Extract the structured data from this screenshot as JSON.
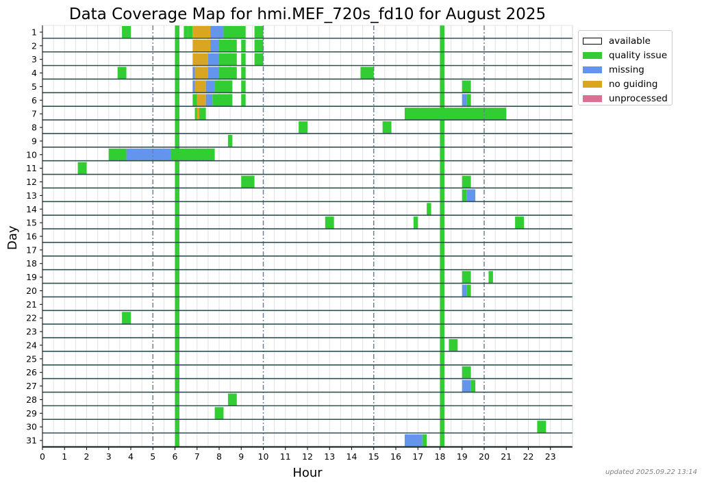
{
  "chart_data": {
    "type": "heatmap",
    "title": "Data Coverage Map for hmi.MEF_720s_fd10 for August 2025",
    "xlabel": "Hour",
    "ylabel": "Day",
    "xlim": [
      0,
      24
    ],
    "ylim": [
      1,
      31
    ],
    "x_ticks": [
      "0",
      "1",
      "2",
      "3",
      "4",
      "5",
      "6",
      "7",
      "8",
      "9",
      "10",
      "11",
      "12",
      "13",
      "14",
      "15",
      "16",
      "17",
      "18",
      "19",
      "20",
      "21",
      "22",
      "23"
    ],
    "y_ticks": [
      "1",
      "2",
      "3",
      "4",
      "5",
      "6",
      "7",
      "8",
      "9",
      "10",
      "11",
      "12",
      "13",
      "14",
      "15",
      "16",
      "17",
      "18",
      "19",
      "20",
      "21",
      "22",
      "23",
      "24",
      "25",
      "26",
      "27",
      "28",
      "29",
      "30",
      "31"
    ],
    "dashed_vlines": [
      5,
      10,
      15,
      20
    ],
    "legend": [
      {
        "key": "available",
        "label": "available",
        "color": "#ffffff"
      },
      {
        "key": "quality",
        "label": "quality issue",
        "color": "#32cd32"
      },
      {
        "key": "missing",
        "label": "missing",
        "color": "#6495ed"
      },
      {
        "key": "noguide",
        "label": "no guiding",
        "color": "#daa520"
      },
      {
        "key": "unproc",
        "label": "unprocessed",
        "color": "#db7093"
      }
    ],
    "series": [
      {
        "day": 1,
        "spans": [
          [
            3.6,
            4.0,
            "quality"
          ],
          [
            6.4,
            6.6,
            "quality"
          ],
          [
            6.6,
            6.8,
            "quality"
          ],
          [
            6.8,
            7.6,
            "noguide"
          ],
          [
            7.6,
            8.2,
            "missing"
          ],
          [
            8.2,
            9.2,
            "quality"
          ],
          [
            9.6,
            10.0,
            "quality"
          ]
        ]
      },
      {
        "day": 2,
        "spans": [
          [
            6.8,
            7.6,
            "noguide"
          ],
          [
            7.6,
            8.0,
            "missing"
          ],
          [
            8.0,
            8.8,
            "quality"
          ],
          [
            9.0,
            9.2,
            "quality"
          ],
          [
            9.6,
            10.0,
            "quality"
          ]
        ]
      },
      {
        "day": 3,
        "spans": [
          [
            6.8,
            7.5,
            "noguide"
          ],
          [
            7.5,
            8.0,
            "missing"
          ],
          [
            8.0,
            8.8,
            "quality"
          ],
          [
            9.0,
            9.2,
            "quality"
          ],
          [
            9.6,
            10.0,
            "quality"
          ]
        ]
      },
      {
        "day": 4,
        "spans": [
          [
            3.4,
            3.8,
            "quality"
          ],
          [
            6.8,
            6.9,
            "missing"
          ],
          [
            6.9,
            7.5,
            "noguide"
          ],
          [
            7.5,
            8.0,
            "missing"
          ],
          [
            8.0,
            8.8,
            "quality"
          ],
          [
            9.0,
            9.2,
            "quality"
          ],
          [
            14.4,
            15.0,
            "quality"
          ]
        ]
      },
      {
        "day": 5,
        "spans": [
          [
            6.8,
            6.9,
            "missing"
          ],
          [
            6.9,
            7.4,
            "noguide"
          ],
          [
            7.4,
            7.8,
            "missing"
          ],
          [
            7.8,
            8.6,
            "quality"
          ],
          [
            9.0,
            9.2,
            "quality"
          ],
          [
            19.0,
            19.4,
            "quality"
          ]
        ]
      },
      {
        "day": 6,
        "spans": [
          [
            6.8,
            7.0,
            "quality"
          ],
          [
            7.0,
            7.4,
            "noguide"
          ],
          [
            7.4,
            7.7,
            "missing"
          ],
          [
            7.7,
            8.6,
            "quality"
          ],
          [
            9.0,
            9.2,
            "quality"
          ],
          [
            19.0,
            19.2,
            "missing"
          ],
          [
            19.2,
            19.4,
            "quality"
          ]
        ]
      },
      {
        "day": 7,
        "spans": [
          [
            6.9,
            7.0,
            "quality"
          ],
          [
            7.0,
            7.1,
            "noguide"
          ],
          [
            7.1,
            7.4,
            "quality"
          ],
          [
            16.4,
            21.0,
            "quality"
          ]
        ]
      },
      {
        "day": 8,
        "spans": [
          [
            11.6,
            12.0,
            "quality"
          ],
          [
            15.4,
            15.8,
            "quality"
          ]
        ]
      },
      {
        "day": 9,
        "spans": [
          [
            8.4,
            8.6,
            "quality"
          ]
        ]
      },
      {
        "day": 10,
        "spans": [
          [
            3.0,
            3.8,
            "quality"
          ],
          [
            3.8,
            5.8,
            "missing"
          ],
          [
            5.8,
            7.8,
            "quality"
          ]
        ]
      },
      {
        "day": 11,
        "spans": [
          [
            1.6,
            2.0,
            "quality"
          ]
        ]
      },
      {
        "day": 12,
        "spans": [
          [
            9.0,
            9.6,
            "quality"
          ],
          [
            19.0,
            19.4,
            "quality"
          ]
        ]
      },
      {
        "day": 13,
        "spans": [
          [
            19.0,
            19.2,
            "quality"
          ],
          [
            19.2,
            19.6,
            "missing"
          ]
        ]
      },
      {
        "day": 14,
        "spans": [
          [
            17.4,
            17.6,
            "quality"
          ]
        ]
      },
      {
        "day": 15,
        "spans": [
          [
            12.8,
            13.2,
            "quality"
          ],
          [
            16.8,
            17.0,
            "quality"
          ],
          [
            21.4,
            21.8,
            "quality"
          ]
        ]
      },
      {
        "day": 16,
        "spans": []
      },
      {
        "day": 17,
        "spans": []
      },
      {
        "day": 18,
        "spans": []
      },
      {
        "day": 19,
        "spans": [
          [
            19.0,
            19.4,
            "quality"
          ],
          [
            20.2,
            20.4,
            "quality"
          ]
        ]
      },
      {
        "day": 20,
        "spans": [
          [
            19.0,
            19.2,
            "missing"
          ],
          [
            19.2,
            19.4,
            "quality"
          ]
        ]
      },
      {
        "day": 21,
        "spans": []
      },
      {
        "day": 22,
        "spans": [
          [
            3.6,
            4.0,
            "quality"
          ]
        ]
      },
      {
        "day": 23,
        "spans": []
      },
      {
        "day": 24,
        "spans": [
          [
            18.4,
            18.8,
            "quality"
          ]
        ]
      },
      {
        "day": 25,
        "spans": []
      },
      {
        "day": 26,
        "spans": [
          [
            19.0,
            19.4,
            "quality"
          ]
        ]
      },
      {
        "day": 27,
        "spans": [
          [
            19.0,
            19.4,
            "missing"
          ],
          [
            19.4,
            19.6,
            "quality"
          ]
        ]
      },
      {
        "day": 28,
        "spans": [
          [
            8.4,
            8.8,
            "quality"
          ]
        ]
      },
      {
        "day": 29,
        "spans": [
          [
            7.8,
            8.2,
            "quality"
          ]
        ]
      },
      {
        "day": 30,
        "spans": [
          [
            22.4,
            22.8,
            "quality"
          ]
        ]
      },
      {
        "day": 31,
        "spans": [
          [
            16.4,
            17.2,
            "missing"
          ],
          [
            17.2,
            17.4,
            "quality"
          ]
        ]
      }
    ],
    "full_month_columns": [
      {
        "start": 6.0,
        "end": 6.2,
        "status": "quality"
      },
      {
        "start": 18.0,
        "end": 18.2,
        "status": "quality"
      }
    ]
  },
  "footnote": "updated 2025.09.22 13:14"
}
